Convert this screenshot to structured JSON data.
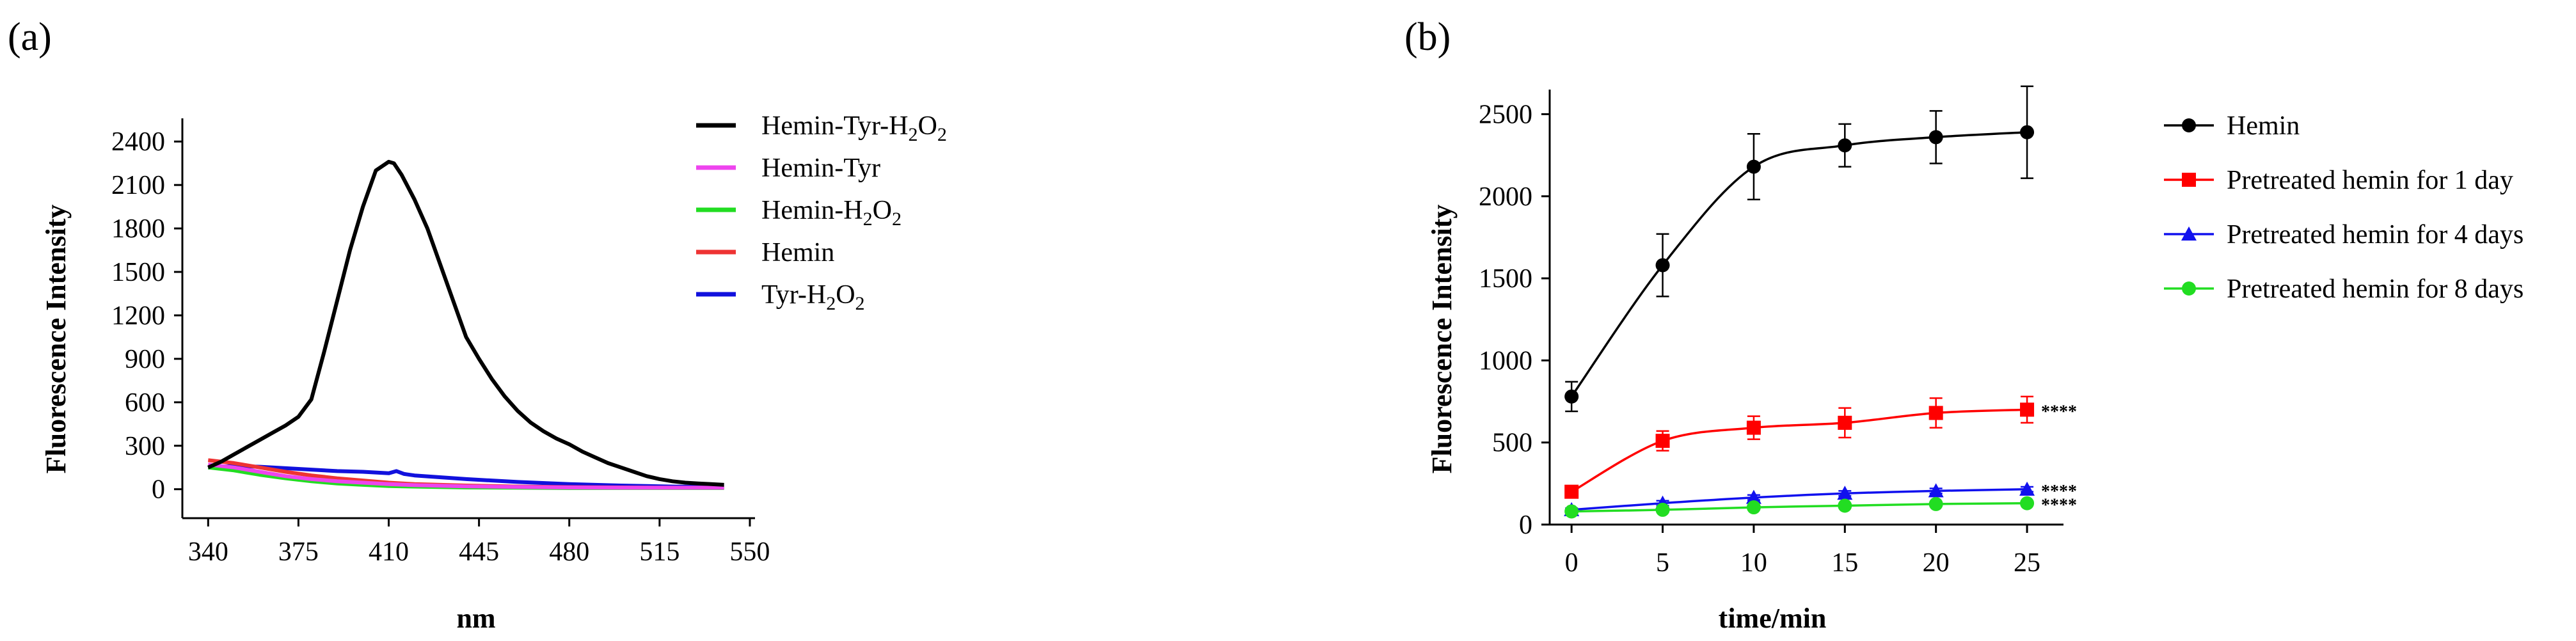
{
  "chart_data": [
    {
      "panel": "(a)",
      "type": "line",
      "xlabel": "nm",
      "ylabel": "Fluorescence Intensity",
      "xticks": [
        "340",
        "375",
        "410",
        "445",
        "480",
        "515",
        "550"
      ],
      "yticks": [
        "0",
        "300",
        "600",
        "900",
        "1200",
        "1500",
        "1800",
        "2100",
        "2400"
      ],
      "xlim": [
        330,
        552
      ],
      "ylim": [
        -200,
        2560
      ],
      "grid": false,
      "legend_position": "right",
      "series": [
        {
          "name": "Hemin-Tyr-H2O2",
          "label_main": "Hemin-Tyr-H",
          "sub1": "2",
          "mid": "O",
          "sub2": "2",
          "color": "#000000",
          "x": [
            340,
            345,
            350,
            355,
            360,
            365,
            370,
            375,
            380,
            385,
            390,
            395,
            400,
            405,
            410,
            412,
            415,
            420,
            425,
            430,
            435,
            440,
            445,
            450,
            455,
            460,
            465,
            470,
            475,
            480,
            485,
            490,
            495,
            500,
            505,
            510,
            515,
            520,
            525,
            530,
            535,
            540
          ],
          "y": [
            150,
            190,
            240,
            290,
            340,
            390,
            440,
            500,
            620,
            950,
            1300,
            1650,
            1950,
            2200,
            2260,
            2250,
            2170,
            2000,
            1800,
            1550,
            1300,
            1050,
            900,
            760,
            640,
            540,
            460,
            400,
            350,
            310,
            260,
            220,
            180,
            150,
            120,
            90,
            70,
            55,
            45,
            40,
            35,
            30
          ]
        },
        {
          "name": "Hemin-Tyr",
          "label_main": "Hemin-Tyr",
          "color": "#ee44ee",
          "x": [
            340,
            350,
            360,
            370,
            380,
            390,
            400,
            410,
            420,
            440,
            460,
            480,
            500,
            520,
            540
          ],
          "y": [
            170,
            150,
            120,
            90,
            70,
            55,
            45,
            35,
            28,
            20,
            15,
            12,
            10,
            10,
            10
          ]
        },
        {
          "name": "Hemin-H2O2",
          "label_main": "Hemin-H",
          "sub1": "2",
          "mid": "O",
          "sub2": "2",
          "color": "#22dd22",
          "x": [
            340,
            350,
            360,
            370,
            380,
            390,
            400,
            410,
            420,
            440,
            460,
            480,
            500,
            520,
            540
          ],
          "y": [
            150,
            130,
            100,
            75,
            55,
            40,
            30,
            22,
            18,
            12,
            10,
            8,
            8,
            8,
            8
          ]
        },
        {
          "name": "Hemin",
          "label_main": "Hemin",
          "color": "#ee3333",
          "x": [
            340,
            350,
            360,
            370,
            380,
            390,
            400,
            410,
            420,
            440,
            460,
            480,
            500,
            520,
            540
          ],
          "y": [
            200,
            180,
            150,
            120,
            95,
            75,
            60,
            45,
            35,
            25,
            18,
            14,
            12,
            10,
            10
          ]
        },
        {
          "name": "Tyr-H2O2",
          "label_main": "Tyr-H",
          "sub1": "2",
          "mid": "O",
          "sub2": "2",
          "color": "#1111dd",
          "x": [
            340,
            350,
            360,
            370,
            380,
            390,
            400,
            410,
            413,
            416,
            420,
            440,
            460,
            480,
            500,
            520,
            540
          ],
          "y": [
            150,
            160,
            155,
            145,
            135,
            125,
            120,
            110,
            125,
            105,
            95,
            70,
            50,
            35,
            25,
            18,
            15
          ]
        }
      ]
    },
    {
      "panel": "(b)",
      "type": "line",
      "xlabel": "time/min",
      "ylabel": "Fluorescence Intensity",
      "xticks": [
        "0",
        "5",
        "10",
        "15",
        "20",
        "25"
      ],
      "yticks": [
        "0",
        "500",
        "1000",
        "1500",
        "2000",
        "2500"
      ],
      "xlim": [
        -1.2,
        27
      ],
      "ylim": [
        0,
        2650
      ],
      "grid": false,
      "legend_position": "right",
      "significance_label": "****",
      "series": [
        {
          "name": "Hemin",
          "color": "#000000",
          "marker": "circle",
          "x": [
            0,
            5,
            10,
            15,
            20,
            25
          ],
          "y": [
            780,
            1580,
            2180,
            2310,
            2360,
            2390
          ],
          "err": [
            90,
            190,
            200,
            130,
            160,
            280
          ],
          "significance": ""
        },
        {
          "name": "Pretreated hemin for 1 day",
          "color": "#ff0000",
          "marker": "square",
          "x": [
            0,
            5,
            10,
            15,
            20,
            25
          ],
          "y": [
            200,
            510,
            590,
            620,
            680,
            700
          ],
          "err": [
            25,
            60,
            70,
            90,
            90,
            80
          ],
          "significance": "****"
        },
        {
          "name": "Pretreated hemin for 4 days",
          "color": "#1111ee",
          "marker": "triangle",
          "x": [
            0,
            5,
            10,
            15,
            20,
            25
          ],
          "y": [
            90,
            130,
            165,
            190,
            205,
            215
          ],
          "err": [
            10,
            15,
            15,
            15,
            15,
            15
          ],
          "significance": "****"
        },
        {
          "name": "Pretreated hemin for 8 days",
          "color": "#22dd22",
          "marker": "circle",
          "x": [
            0,
            5,
            10,
            15,
            20,
            25
          ],
          "y": [
            80,
            90,
            105,
            115,
            125,
            130
          ],
          "err": [
            8,
            8,
            8,
            8,
            8,
            8
          ],
          "significance": "****"
        }
      ]
    }
  ]
}
